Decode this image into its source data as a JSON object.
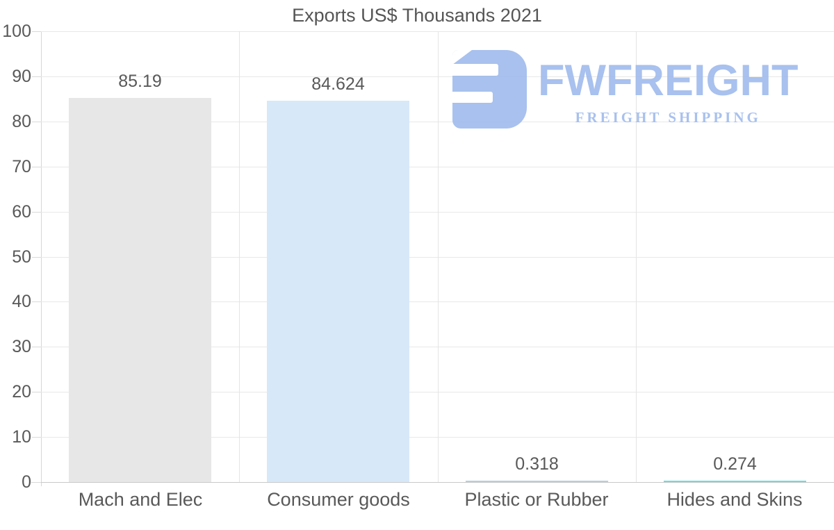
{
  "chart_data": {
    "type": "bar",
    "title": "Exports US$ Thousands 2021",
    "categories": [
      "Mach and Elec",
      "Consumer goods",
      "Plastic or Rubber",
      "Hides and Skins"
    ],
    "values": [
      85.19,
      84.624,
      0.318,
      0.274
    ],
    "value_labels": [
      "85.19",
      "84.624",
      "0.318",
      "0.274"
    ],
    "bar_colors": [
      "#e7e7e7",
      "#d7e8f8",
      "#b9cede",
      "#6edbe0"
    ],
    "xlabel": "",
    "ylabel": "",
    "ylim": [
      0,
      100
    ],
    "yticks": [
      0,
      10,
      20,
      30,
      40,
      50,
      60,
      70,
      80,
      90,
      100
    ],
    "grid": "on",
    "legend": "none"
  },
  "watermark": {
    "brand": "FWFREIGHT",
    "tagline": "FREIGHT SHIPPING",
    "logo_icon": "fwfreight-logo-mark",
    "logo_color": "#9db9ec"
  },
  "colors": {
    "text": "#595959",
    "title": "#555555",
    "gridline": "#e8e8e8",
    "axis_line": "#c9c9c9",
    "background": "#ffffff"
  }
}
